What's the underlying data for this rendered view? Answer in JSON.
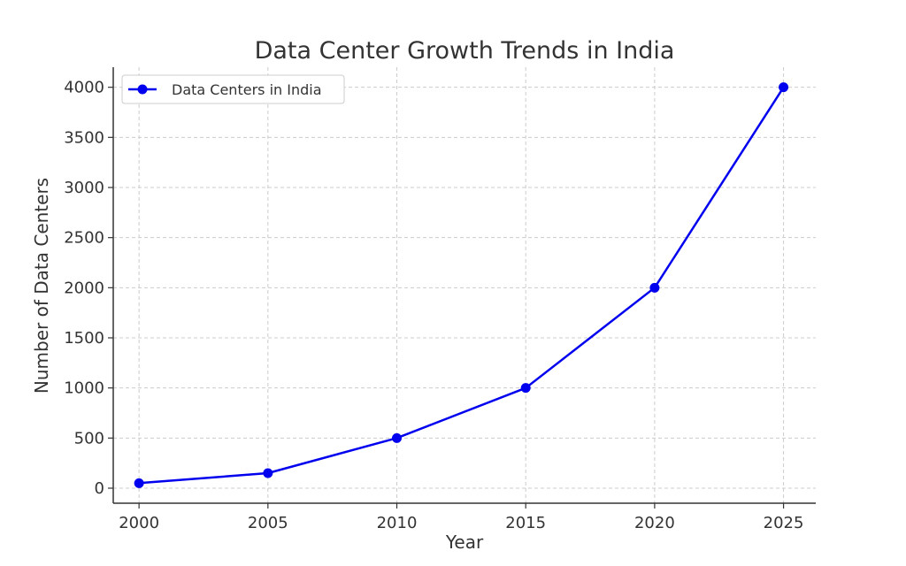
{
  "chart_data": {
    "type": "line",
    "title": "Data Center Growth Trends in India",
    "xlabel": "Year",
    "ylabel": "Number of Data Centers",
    "x": [
      2000,
      2005,
      2010,
      2015,
      2020,
      2025
    ],
    "series": [
      {
        "name": "Data Centers in India",
        "values": [
          50,
          150,
          500,
          1000,
          2000,
          4000
        ],
        "color": "#0000ee",
        "marker": "circle"
      }
    ],
    "x_ticks": [
      "2000",
      "2005",
      "2010",
      "2015",
      "2020",
      "2025"
    ],
    "y_ticks": [
      "0",
      "500",
      "1000",
      "1500",
      "2000",
      "2500",
      "3000",
      "3500",
      "4000"
    ],
    "xlim": [
      1999,
      2026.25
    ],
    "ylim": [
      -150,
      4200
    ],
    "grid": true,
    "legend_position": "top-left"
  }
}
